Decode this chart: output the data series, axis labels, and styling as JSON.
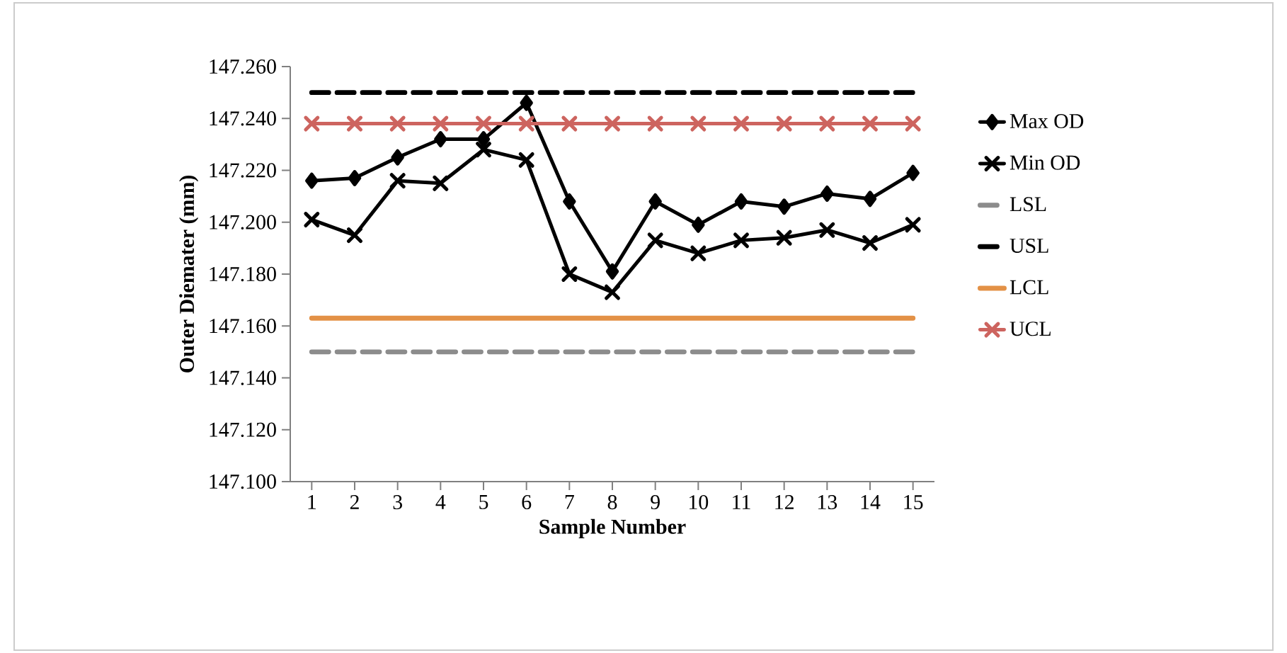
{
  "chart_data": {
    "type": "line",
    "xlabel": "Sample Number",
    "ylabel": "Outer Diemater (mm)",
    "categories": [
      "1",
      "2",
      "3",
      "4",
      "5",
      "6",
      "7",
      "8",
      "9",
      "10",
      "11",
      "12",
      "13",
      "14",
      "15"
    ],
    "ylim": [
      147.1,
      147.26
    ],
    "yticks": [
      {
        "value": 147.1,
        "label": "147.100"
      },
      {
        "value": 147.12,
        "label": "147.120"
      },
      {
        "value": 147.14,
        "label": "147.140"
      },
      {
        "value": 147.16,
        "label": "147.160"
      },
      {
        "value": 147.18,
        "label": "147.180"
      },
      {
        "value": 147.2,
        "label": "147.200"
      },
      {
        "value": 147.22,
        "label": "147.220"
      },
      {
        "value": 147.24,
        "label": "147.240"
      },
      {
        "value": 147.26,
        "label": "147.260"
      }
    ],
    "grid": false,
    "legend": "right",
    "series": [
      {
        "name": "Max OD",
        "color": "#000000",
        "marker": "diamond",
        "line_style": "solid",
        "values": [
          147.216,
          147.217,
          147.225,
          147.232,
          147.232,
          147.246,
          147.208,
          147.181,
          147.208,
          147.199,
          147.208,
          147.206,
          147.211,
          147.209,
          147.219
        ]
      },
      {
        "name": "Min OD",
        "color": "#000000",
        "marker": "cross",
        "line_style": "solid",
        "values": [
          147.201,
          147.195,
          147.216,
          147.215,
          147.228,
          147.224,
          147.18,
          147.173,
          147.193,
          147.188,
          147.193,
          147.194,
          147.197,
          147.192,
          147.199
        ]
      },
      {
        "name": "LSL",
        "color": "#8c8c8c",
        "marker": "none",
        "line_style": "dashed",
        "values": [
          147.15,
          147.15,
          147.15,
          147.15,
          147.15,
          147.15,
          147.15,
          147.15,
          147.15,
          147.15,
          147.15,
          147.15,
          147.15,
          147.15,
          147.15
        ]
      },
      {
        "name": "USL",
        "color": "#000000",
        "marker": "none",
        "line_style": "dashed",
        "values": [
          147.25,
          147.25,
          147.25,
          147.25,
          147.25,
          147.25,
          147.25,
          147.25,
          147.25,
          147.25,
          147.25,
          147.25,
          147.25,
          147.25,
          147.25
        ]
      },
      {
        "name": "LCL",
        "color": "#e39146",
        "marker": "none",
        "line_style": "solid",
        "values": [
          147.163,
          147.163,
          147.163,
          147.163,
          147.163,
          147.163,
          147.163,
          147.163,
          147.163,
          147.163,
          147.163,
          147.163,
          147.163,
          147.163,
          147.163
        ]
      },
      {
        "name": "UCL",
        "color": "#cd645f",
        "marker": "cross",
        "line_style": "solid",
        "values": [
          147.238,
          147.238,
          147.238,
          147.238,
          147.238,
          147.238,
          147.238,
          147.238,
          147.238,
          147.238,
          147.238,
          147.238,
          147.238,
          147.238,
          147.238
        ]
      }
    ]
  }
}
